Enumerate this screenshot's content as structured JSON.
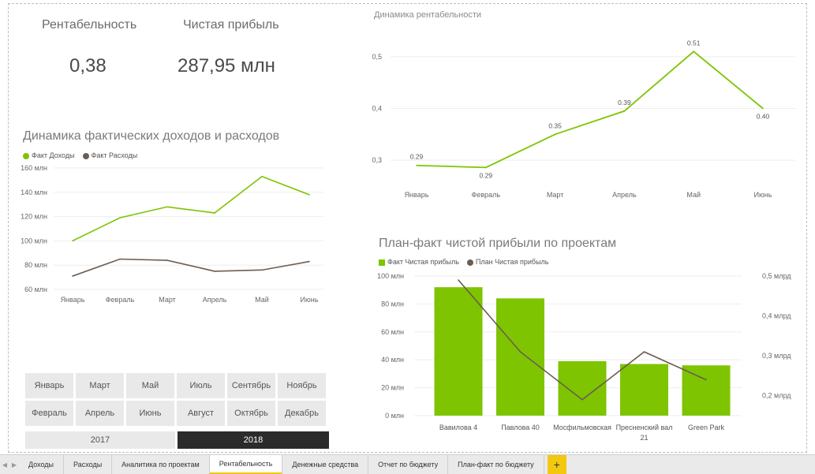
{
  "kpis": [
    {
      "title": "Рентабельность",
      "value": "0,38"
    },
    {
      "title": "Чистая прибыль",
      "value": "287,95 млн"
    }
  ],
  "line_income": {
    "title": "Динамика фактических доходов и расходов",
    "legend": [
      "Факт Доходы",
      "Факт Расходы"
    ],
    "colors": [
      "#7ec400",
      "#6b5d53"
    ],
    "y_ticks": [
      "160 млн",
      "140 млн",
      "120 млн",
      "100 млн",
      "80 млн",
      "60 млн"
    ]
  },
  "line_profit": {
    "title": "Динамика рентабельности",
    "y_ticks": [
      "0,5",
      "0,4",
      "0,3"
    ],
    "point_labels": [
      "0.29",
      "0.29",
      "0.35",
      "0.39",
      "0.51",
      "0.40"
    ],
    "color": "#7ec400"
  },
  "bar_combo": {
    "title": "План-факт чистой прибыли по проектам",
    "legend": [
      "Факт Чистая прибыль",
      "План Чистая прибыль"
    ],
    "colors": [
      "#7ec400",
      "#6b5d53"
    ],
    "y_left_ticks": [
      "100 млн",
      "80 млн",
      "60 млн",
      "40 млн",
      "20 млн",
      "0 млн"
    ],
    "y_right_ticks": [
      "0,5 млрд",
      "0,4 млрд",
      "0,3 млрд",
      "0,2 млрд"
    ],
    "x_labels": [
      [
        "Вавилова 4"
      ],
      [
        "Павлова 40"
      ],
      [
        "Мосфильмовская"
      ],
      [
        "Пресненский вал",
        "21"
      ],
      [
        "Green Park"
      ]
    ]
  },
  "slicer": {
    "months": [
      "Январь",
      "Март",
      "Май",
      "Июль",
      "Сентябрь",
      "Ноябрь",
      "Февраль",
      "Апрель",
      "Июнь",
      "Август",
      "Октябрь",
      "Декабрь"
    ],
    "years": [
      "2017",
      "2018"
    ],
    "selected_year": "2018"
  },
  "tabs": {
    "items": [
      "Доходы",
      "Расходы",
      "Аналитика по проектам",
      "Рентабельность",
      "Денежные средства",
      "Отчет по бюджету",
      "План-факт по бюджету"
    ],
    "active": "Рентабельность",
    "add_label": "+"
  },
  "chart_data": [
    {
      "type": "line",
      "title": "Динамика фактических доходов и расходов",
      "x": [
        "Январь",
        "Февраль",
        "Март",
        "Апрель",
        "Май",
        "Июнь"
      ],
      "series": [
        {
          "name": "Факт Доходы",
          "values": [
            100,
            119,
            128,
            123,
            153,
            138
          ]
        },
        {
          "name": "Факт Расходы",
          "values": [
            71,
            85,
            84,
            75,
            76,
            83
          ]
        }
      ],
      "ylim": [
        60,
        160
      ],
      "unit": "млн",
      "legend": "top-left",
      "grid": true
    },
    {
      "type": "line",
      "title": "Динамика рентабельности",
      "x": [
        "Январь",
        "Февраль",
        "Март",
        "Апрель",
        "Май",
        "Июнь"
      ],
      "series": [
        {
          "values": [
            0.29,
            0.286,
            0.35,
            0.395,
            0.51,
            0.4
          ]
        }
      ],
      "ylim": [
        0.25,
        0.55
      ],
      "grid": true
    },
    {
      "type": "bar",
      "title": "План-факт чистой прибыли по проектам",
      "categories": [
        "Вавилова 4",
        "Павлова 40",
        "Мосфильмовская",
        "Пресненский вал 21",
        "Green Park"
      ],
      "series": [
        {
          "name": "Факт Чистая прибыль",
          "values": [
            92,
            84,
            39,
            37,
            36
          ],
          "axis": "left",
          "unit": "млн"
        },
        {
          "name": "План Чистая прибыль",
          "values": [
            0.49,
            0.31,
            0.19,
            0.31,
            0.24
          ],
          "axis": "right",
          "unit": "млрд",
          "type": "line"
        }
      ],
      "ylim_left": [
        0,
        100
      ],
      "ylim_right": [
        0.15,
        0.5
      ],
      "legend": "top-left",
      "grid": true
    }
  ]
}
